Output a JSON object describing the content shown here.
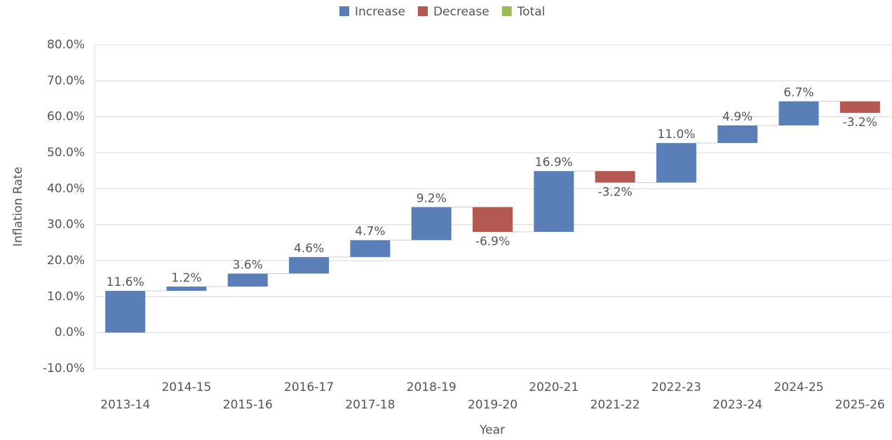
{
  "chart_data": {
    "type": "waterfall",
    "legend": [
      {
        "name": "Increase",
        "color": "#5a7fb8"
      },
      {
        "name": "Decrease",
        "color": "#b45852"
      },
      {
        "name": "Total",
        "color": "#9bbb59"
      }
    ],
    "x_label": "Year",
    "y_label": "Inflation Rate",
    "categories": [
      "2013-14",
      "2014-15",
      "2015-16",
      "2016-17",
      "2017-18",
      "2018-19",
      "2019-20",
      "2020-21",
      "2021-22",
      "2022-23",
      "2023-24",
      "2024-25",
      "2025-26"
    ],
    "values": [
      11.6,
      1.2,
      3.6,
      4.6,
      4.7,
      9.2,
      -6.9,
      16.9,
      -3.2,
      11.0,
      4.9,
      6.7,
      -3.2
    ],
    "value_labels": [
      "11.6%",
      "1.2%",
      "3.6%",
      "4.6%",
      "4.7%",
      "9.2%",
      "-6.9%",
      "16.9%",
      "-3.2%",
      "11.0%",
      "4.9%",
      "6.7%",
      "-3.2%"
    ],
    "ylim": [
      -10,
      80
    ],
    "yticks": [
      {
        "value": -10,
        "label": "-10.0%"
      },
      {
        "value": 0,
        "label": "0.0%"
      },
      {
        "value": 10,
        "label": "10.0%"
      },
      {
        "value": 20,
        "label": "20.0%"
      },
      {
        "value": 30,
        "label": "30.0%"
      },
      {
        "value": 40,
        "label": "40.0%"
      },
      {
        "value": 50,
        "label": "50.0%"
      },
      {
        "value": 60,
        "label": "60.0%"
      },
      {
        "value": 70,
        "label": "70.0%"
      },
      {
        "value": 80,
        "label": "80.0%"
      }
    ],
    "grid": true
  }
}
